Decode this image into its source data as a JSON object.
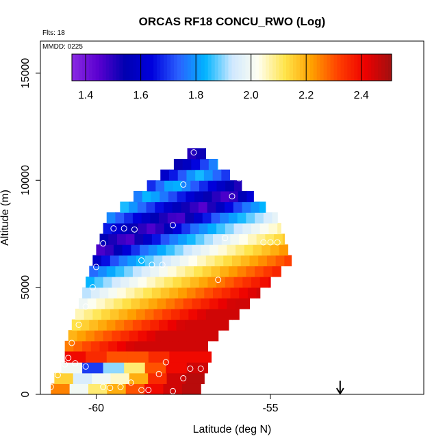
{
  "chart_data": {
    "type": "heatmap",
    "title": "ORCAS RF18 CONCU_RWO (Log)",
    "subtitle_flights": "Flts: 18",
    "subtitle_date": "MMDD: 0225",
    "xlabel": "Latitude (deg N)",
    "ylabel": "Altitude (m)",
    "xlim": [
      -61.6,
      -50.6
    ],
    "ylim": [
      0,
      16500
    ],
    "x_ticks": [
      -60,
      -55
    ],
    "x_tick_labels": [
      "-60",
      "-55"
    ],
    "y_ticks": [
      0,
      5000,
      10000,
      15000
    ],
    "y_tick_labels": [
      "0",
      "5000",
      "10000",
      "15000"
    ],
    "colorbar": {
      "range": [
        1.35,
        2.51
      ],
      "ticks": [
        1.4,
        1.6,
        1.8,
        2.0,
        2.2,
        2.4
      ],
      "tick_labels": [
        "1.4",
        "1.6",
        "1.8",
        "2.0",
        "2.2",
        "2.4"
      ],
      "colors": [
        "#8a2be2",
        "#5a00d0",
        "#0000b0",
        "#0000dd",
        "#2a60ff",
        "#00b4ff",
        "#cfe8ff",
        "#fffff0",
        "#ffe44a",
        "#ffa000",
        "#ff4000",
        "#ee0000",
        "#a01010"
      ]
    },
    "grid": false,
    "field": {
      "bottom_rows": [
        {
          "alt": 250,
          "lat_min": -61.3,
          "lat_max": -57.0,
          "values": [
            2.25,
            2.0,
            2.1,
            2.2,
            2.3,
            2.4,
            2.45,
            2.48
          ]
        },
        {
          "alt": 750,
          "lat_min": -61.2,
          "lat_max": -56.9,
          "values": [
            2.15,
            1.95,
            2.0,
            2.05,
            2.2,
            2.35,
            2.45,
            2.48
          ]
        },
        {
          "alt": 1250,
          "lat_min": -61.0,
          "lat_max": -56.8,
          "values": [
            2.0,
            1.7,
            1.9,
            2.1,
            2.3,
            2.4,
            2.45
          ]
        },
        {
          "alt": 1750,
          "lat_min": -60.9,
          "lat_max": -56.7,
          "values": [
            2.4,
            2.35,
            2.3,
            2.3,
            2.35,
            2.4,
            2.4
          ]
        }
      ]
    },
    "flight_points": [
      {
        "lat": -61.3,
        "alt": 350
      },
      {
        "lat": -61.1,
        "alt": 900
      },
      {
        "lat": -60.9,
        "alt": 1400
      },
      {
        "lat": -60.8,
        "alt": 1700
      },
      {
        "lat": -60.6,
        "alt": 1450
      },
      {
        "lat": -60.3,
        "alt": 1300
      },
      {
        "lat": -60.7,
        "alt": 2400
      },
      {
        "lat": -60.5,
        "alt": 3250
      },
      {
        "lat": -60.3,
        "alt": 4100
      },
      {
        "lat": -60.1,
        "alt": 5000
      },
      {
        "lat": -60.0,
        "alt": 5950
      },
      {
        "lat": -59.8,
        "alt": 7050
      },
      {
        "lat": -59.5,
        "alt": 7750
      },
      {
        "lat": -59.2,
        "alt": 7750
      },
      {
        "lat": -58.9,
        "alt": 7700
      },
      {
        "lat": -58.7,
        "alt": 6250
      },
      {
        "lat": -58.4,
        "alt": 6050
      },
      {
        "lat": -58.1,
        "alt": 6050
      },
      {
        "lat": -57.8,
        "alt": 7900
      },
      {
        "lat": -57.5,
        "alt": 9800
      },
      {
        "lat": -57.2,
        "alt": 11300
      },
      {
        "lat": -56.5,
        "alt": 5350
      },
      {
        "lat": -56.3,
        "alt": 7300
      },
      {
        "lat": -56.1,
        "alt": 9250
      },
      {
        "lat": -55.9,
        "alt": 10100
      },
      {
        "lat": -55.7,
        "alt": 10100
      },
      {
        "lat": -55.5,
        "alt": 10100
      },
      {
        "lat": -55.3,
        "alt": 10100
      },
      {
        "lat": -55.2,
        "alt": 7100
      },
      {
        "lat": -55.0,
        "alt": 7100
      },
      {
        "lat": -54.8,
        "alt": 7100
      },
      {
        "lat": -59.8,
        "alt": 350
      },
      {
        "lat": -59.6,
        "alt": 300
      },
      {
        "lat": -59.3,
        "alt": 350
      },
      {
        "lat": -59.0,
        "alt": 550
      },
      {
        "lat": -58.7,
        "alt": 200
      },
      {
        "lat": -58.5,
        "alt": 200
      },
      {
        "lat": -58.2,
        "alt": 950
      },
      {
        "lat": -58.0,
        "alt": 1500
      },
      {
        "lat": -57.8,
        "alt": 150
      },
      {
        "lat": -57.5,
        "alt": 750
      },
      {
        "lat": -57.3,
        "alt": 1200
      },
      {
        "lat": -57.0,
        "alt": 1200
      },
      {
        "lat": -56.8,
        "alt": 400
      },
      {
        "lat": -56.6,
        "alt": 200
      },
      {
        "lat": -56.5,
        "alt": 1550
      },
      {
        "lat": -56.4,
        "alt": 150
      }
    ],
    "marker": {
      "symbol": "arrow-down",
      "lat": -53.0
    }
  }
}
